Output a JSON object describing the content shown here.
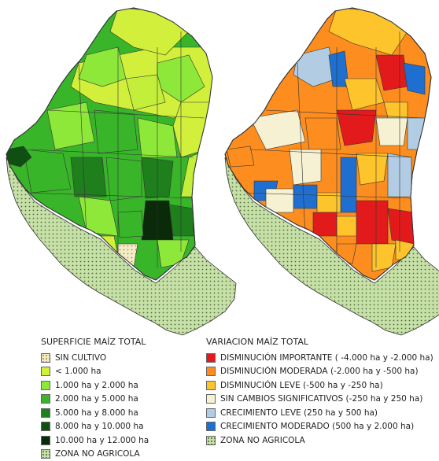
{
  "colors": {
    "zona_no_agricola": "#c7e0a8",
    "sin_cultivo": "#f3ecc4"
  },
  "legend_left": {
    "title": "SUPERFICIE MAÍZ TOTAL",
    "items": [
      {
        "label": "SIN CULTIVO",
        "color": "#f3ecc4",
        "pattern": "dots-light"
      },
      {
        "label": "< 1.000 ha",
        "color": "#d2ef3c"
      },
      {
        "label": "1.000 ha y 2.000 ha",
        "color": "#8ee83a"
      },
      {
        "label": "2.000 ha y 5.000 ha",
        "color": "#39b52a"
      },
      {
        "label": "5.000 ha y 8.000 ha",
        "color": "#1f7f1c"
      },
      {
        "label": "8.000 ha y 10.000 ha",
        "color": "#0f4f12"
      },
      {
        "label": "10.000 ha y 12.000 ha",
        "color": "#0a2a0a"
      },
      {
        "label": "ZONA NO AGRICOLA",
        "color": "#c7e0a8",
        "pattern": "dots"
      }
    ]
  },
  "legend_right": {
    "title": "VARIACION MAÍZ TOTAL",
    "items": [
      {
        "label": "DISMINUCIÓN IMPORTANTE ( -4.000 ha y -2.000 ha)",
        "color": "#e31a1c"
      },
      {
        "label": "DISMINUCIÓN MODERADA (-2.000 ha y -500 ha)",
        "color": "#fd8d1e"
      },
      {
        "label": "DISMINUCIÓN LEVE (-500 ha y -250 ha)",
        "color": "#fec42c"
      },
      {
        "label": "SIN CAMBIOS SIGNIFICATIVOS (-250 ha y 250 ha)",
        "color": "#f5f1d2"
      },
      {
        "label": "CRECIMIENTO LEVE (250 ha y 500 ha)",
        "color": "#b2cde3"
      },
      {
        "label": "CRECIMIENTO MODERADO (500 ha y 2.000 ha)",
        "color": "#1f6fd1"
      },
      {
        "label": "ZONA NO AGRICOLA",
        "color": "#c7e0a8",
        "pattern": "dots"
      }
    ]
  }
}
